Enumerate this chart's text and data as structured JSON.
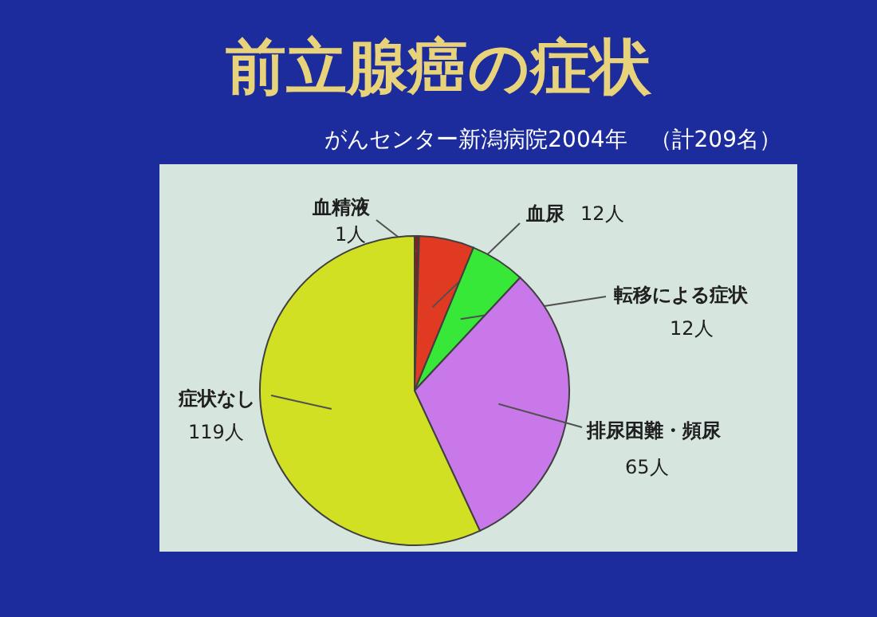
{
  "chart_data": {
    "type": "pie",
    "title": "前立腺癌の症状",
    "subtitle": "がんセンター新潟病院2004年　（計209名）",
    "categories": [
      "血精液",
      "血尿",
      "転移による症状",
      "排尿困難・頻尿",
      "症状なし"
    ],
    "values": [
      1,
      12,
      12,
      65,
      119
    ],
    "value_labels": [
      "1人",
      "12人",
      "12人",
      "65人",
      "119人"
    ],
    "colors": [
      "#802020",
      "#e03a22",
      "#38e838",
      "#c878e8",
      "#d2e024"
    ]
  }
}
